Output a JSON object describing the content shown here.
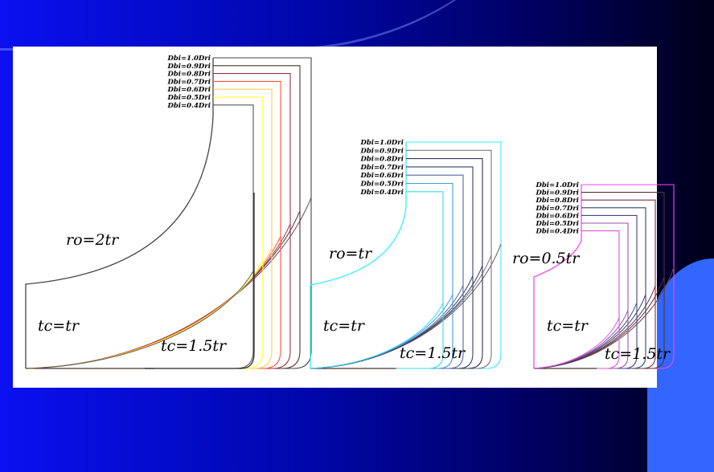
{
  "background": {
    "gradient_start": "#0a10f0",
    "gradient_end": "#000018",
    "accent_shape": "#3366ff",
    "panel": "#ffffff"
  },
  "panels": [
    {
      "ro_label": "ro=2tr",
      "tc_label": "tc=tr",
      "tc2_label": "tc=1.5tr",
      "profile_color": "#444444",
      "curves": [
        {
          "label": "Dbi=1.0Dri",
          "color": "#664466"
        },
        {
          "label": "Dbi=0.9Dri",
          "color": "#553333"
        },
        {
          "label": "Dbi=0.8Dri",
          "color": "#993344"
        },
        {
          "label": "Dbi=0.7Dri",
          "color": "#ff5533"
        },
        {
          "label": "Dbi=0.6Dri",
          "color": "#ffcc55"
        },
        {
          "label": "Dbi=0.5Dri",
          "color": "#ffff22"
        },
        {
          "label": "Dbi=0.4Dri",
          "color": "#555555"
        }
      ]
    },
    {
      "ro_label": "ro=tr",
      "tc_label": "tc=tr",
      "tc2_label": "tc=1.5tr",
      "profile_color": "#33eeff",
      "curves": [
        {
          "label": "Dbi=1.0Dri",
          "color": "#775555"
        },
        {
          "label": "Dbi=0.9Dri",
          "color": "#777788"
        },
        {
          "label": "Dbi=0.8Dri",
          "color": "#333355"
        },
        {
          "label": "Dbi=0.7Dri",
          "color": "#334466"
        },
        {
          "label": "Dbi=0.6Dri",
          "color": "#5566aa"
        },
        {
          "label": "Dbi=0.5Dri",
          "color": "#4499dd"
        },
        {
          "label": "Dbi=0.4Dri",
          "color": "#33ddee"
        }
      ]
    },
    {
      "ro_label": "ro=0.5tr",
      "tc_label": "tc=tr",
      "tc2_label": "tc=1.5tr",
      "profile_color": "#ff44ff",
      "curves": [
        {
          "label": "Dbi=1.0Dri",
          "color": "#664444"
        },
        {
          "label": "Dbi=0.9Dri",
          "color": "#553333"
        },
        {
          "label": "Dbi=0.8Dri",
          "color": "#773344"
        },
        {
          "label": "Dbi=0.7Dri",
          "color": "#334477"
        },
        {
          "label": "Dbi=0.6Dri",
          "color": "#444488"
        },
        {
          "label": "Dbi=0.5Dri",
          "color": "#9955aa"
        },
        {
          "label": "Dbi=0.4Dri",
          "color": "#dd55dd"
        }
      ]
    }
  ]
}
